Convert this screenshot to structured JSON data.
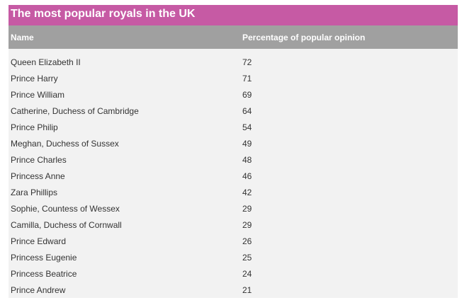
{
  "table": {
    "title": "The most popular royals in the UK",
    "columns": [
      "Name",
      "Percentage of popular opinion"
    ],
    "rows": [
      {
        "name": "Queen Elizabeth II",
        "value": "72"
      },
      {
        "name": "Prince Harry",
        "value": "71"
      },
      {
        "name": "Prince William",
        "value": "69"
      },
      {
        "name": "Catherine, Duchess of Cambridge",
        "value": "64"
      },
      {
        "name": "Prince Philip",
        "value": "54"
      },
      {
        "name": "Meghan, Duchess of Sussex",
        "value": "49"
      },
      {
        "name": "Prince Charles",
        "value": "48"
      },
      {
        "name": "Princess Anne",
        "value": "46"
      },
      {
        "name": "Zara Phillips",
        "value": "42"
      },
      {
        "name": "Sophie, Countess of Wessex",
        "value": "29"
      },
      {
        "name": "Camilla, Duchess of Cornwall",
        "value": "29"
      },
      {
        "name": "Prince Edward",
        "value": "26"
      },
      {
        "name": "Princess Eugenie",
        "value": "25"
      },
      {
        "name": "Princess Beatrice",
        "value": "24"
      },
      {
        "name": "Prince Andrew",
        "value": "21"
      }
    ]
  },
  "colors": {
    "title_bg": "#c65aa4",
    "header_bg": "#a0a0a0",
    "body_bg": "#f2f2f2",
    "text": "#333333"
  }
}
